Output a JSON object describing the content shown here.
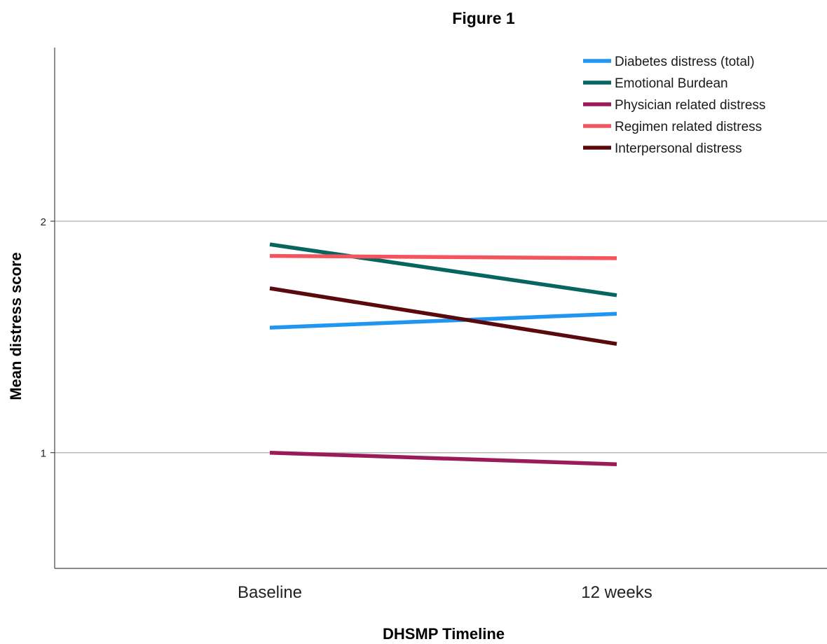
{
  "chart_data": {
    "type": "line",
    "title": "Figure 1",
    "xlabel": "DHSMP Timeline",
    "ylabel": "Mean distress score",
    "categories": [
      "Baseline",
      "12 weeks"
    ],
    "ylim": [
      0.5,
      2.75
    ],
    "yticks": [
      1,
      2
    ],
    "grid": "horizontal",
    "legend_position": "top-right",
    "series": [
      {
        "name": "Diabetes distress (total)",
        "color": "#2196f0",
        "values": [
          1.54,
          1.6
        ]
      },
      {
        "name": "Emotional Burdean",
        "color": "#07655f",
        "values": [
          1.9,
          1.68
        ]
      },
      {
        "name": "Physician related distress",
        "color": "#9a1b58",
        "values": [
          1.0,
          0.95
        ]
      },
      {
        "name": "Regimen related distress",
        "color": "#f4545e",
        "values": [
          1.85,
          1.84
        ]
      },
      {
        "name": "Interpersonal distress",
        "color": "#5a0a0d",
        "values": [
          1.71,
          1.47
        ]
      }
    ]
  }
}
